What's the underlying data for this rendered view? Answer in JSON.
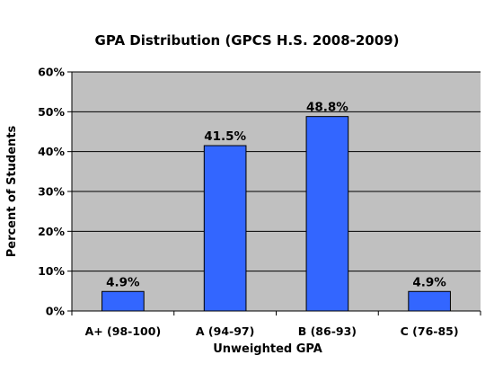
{
  "chart_data": {
    "type": "bar",
    "title": "GPA Distribution (GPCS H.S. 2008-2009)",
    "xlabel": "Unweighted GPA",
    "ylabel": "Percent of Students",
    "categories": [
      "A+ (98-100)",
      "A (94-97)",
      "B (86-93)",
      "C (76-85)"
    ],
    "values": [
      4.9,
      41.5,
      48.8,
      4.9
    ],
    "data_labels": [
      "4.9%",
      "41.5%",
      "48.8%",
      "4.9%"
    ],
    "ylim": [
      0,
      60
    ],
    "y_ticks": [
      0,
      10,
      20,
      30,
      40,
      50,
      60
    ],
    "y_tick_labels": [
      "0%",
      "10%",
      "20%",
      "30%",
      "40%",
      "50%",
      "60%"
    ],
    "grid": true,
    "legend": false
  },
  "colors": {
    "bar": "#3366ff",
    "bar_border": "#000000",
    "plot_background": "#c0c0c0",
    "gridline": "#000000"
  }
}
